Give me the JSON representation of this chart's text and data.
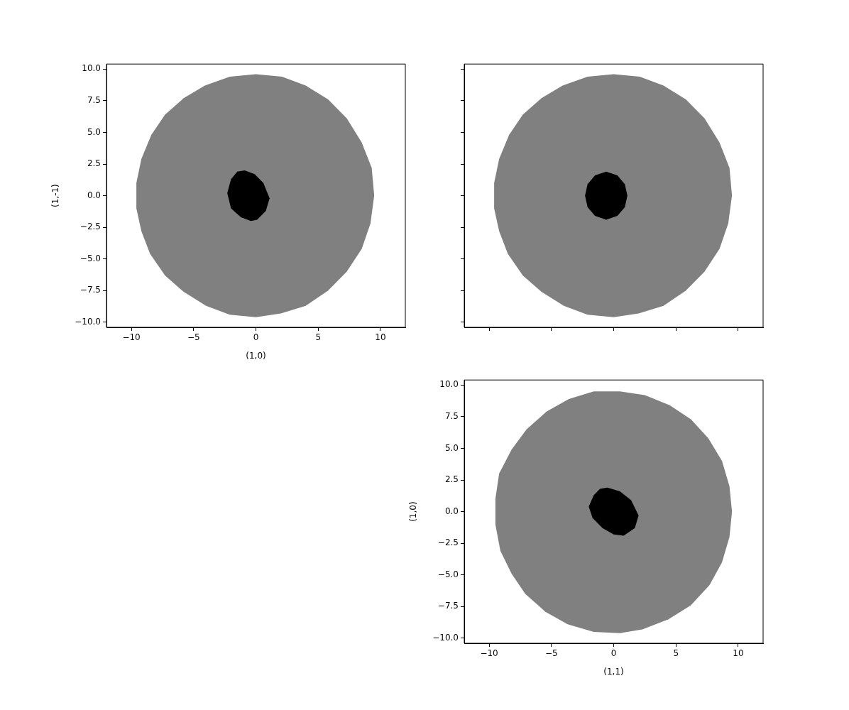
{
  "chart_data": [
    {
      "type": "area",
      "xlabel": "(1,0)",
      "ylabel": "(1,-1)",
      "xlim": [
        -12,
        12
      ],
      "ylim": [
        -10.4,
        10.4
      ],
      "xticks": [
        -10,
        -5,
        0,
        5,
        10
      ],
      "yticks": [
        {
          "value": -10,
          "label": "−10.0"
        },
        {
          "value": -7.5,
          "label": "−7.5"
        },
        {
          "value": -5,
          "label": "−5.0"
        },
        {
          "value": -2.5,
          "label": "−2.5"
        },
        {
          "value": 0,
          "label": "0.0"
        },
        2.5,
        {
          "value": 5,
          "label": "5.0"
        },
        7.5,
        {
          "value": 10,
          "label": "10.0"
        }
      ],
      "series": [
        {
          "color": "#808080",
          "x": [
            0,
            2.1,
            4,
            5.8,
            7.3,
            8.5,
            9.3,
            9.5,
            9.2,
            8.5,
            7.3,
            5.8,
            4,
            2,
            0,
            -2.1,
            -4,
            -5.8,
            -7.3,
            -8.5,
            -9.2,
            -9.6,
            -9.6,
            -9.2,
            -8.4,
            -7.3,
            -5.8,
            -4.1,
            -2.1
          ],
          "values": [
            9.6,
            9.4,
            8.7,
            7.6,
            6.1,
            4.2,
            2.2,
            0,
            -2.2,
            -4.2,
            -6,
            -7.5,
            -8.7,
            -9.3,
            -9.6,
            -9.4,
            -8.7,
            -7.6,
            -6.3,
            -4.6,
            -2.8,
            -1,
            1,
            2.9,
            4.8,
            6.4,
            7.7,
            8.7,
            9.4
          ]
        },
        {
          "color": "#000000",
          "x": [
            -0.9,
            -0.1,
            0.6,
            1.1,
            0.8,
            0.1,
            -0.4,
            -1.2,
            -2.0,
            -2.3,
            -2.0,
            -1.5
          ],
          "values": [
            2.0,
            1.7,
            1.0,
            -0.2,
            -1.2,
            -1.9,
            -2.0,
            -1.7,
            -1.0,
            0.2,
            1.3,
            1.9
          ]
        }
      ]
    },
    {
      "type": "area",
      "tick_labels": false,
      "xlim": [
        -12,
        12
      ],
      "ylim": [
        -10.4,
        10.4
      ],
      "xticks": [
        -10,
        -5,
        0,
        5,
        10
      ],
      "yticks": [
        -10,
        -7.5,
        -5,
        -2.5,
        0,
        2.5,
        5,
        7.5,
        10
      ],
      "series": [
        {
          "color": "#808080",
          "x": [
            0,
            2.1,
            4,
            5.8,
            7.3,
            8.5,
            9.3,
            9.5,
            9.2,
            8.5,
            7.3,
            5.8,
            4,
            2,
            0,
            -2.1,
            -4,
            -5.8,
            -7.3,
            -8.5,
            -9.2,
            -9.6,
            -9.6,
            -9.2,
            -8.4,
            -7.3,
            -5.8,
            -4.1,
            -2.1
          ],
          "values": [
            9.6,
            9.4,
            8.7,
            7.6,
            6.1,
            4.2,
            2.2,
            0,
            -2.2,
            -4.2,
            -6,
            -7.5,
            -8.7,
            -9.3,
            -9.6,
            -9.4,
            -8.7,
            -7.6,
            -6.3,
            -4.6,
            -2.8,
            -1,
            1,
            2.9,
            4.8,
            6.4,
            7.7,
            8.7,
            9.4
          ]
        },
        {
          "color": "#000000",
          "x": [
            -0.6,
            0.3,
            0.9,
            1.1,
            0.9,
            0.3,
            -0.6,
            -1.5,
            -2.1,
            -2.3,
            -2.1,
            -1.5
          ],
          "values": [
            1.9,
            1.6,
            0.9,
            0,
            -0.9,
            -1.6,
            -1.9,
            -1.6,
            -0.9,
            0,
            0.9,
            1.6
          ]
        }
      ]
    },
    {
      "type": "area",
      "xlabel": "(1,1)",
      "ylabel": "(1,0)",
      "xlim": [
        -12,
        12
      ],
      "ylim": [
        -10.4,
        10.4
      ],
      "xticks": [
        -10,
        -5,
        0,
        5,
        10
      ],
      "yticks": [
        {
          "value": -10,
          "label": "−10.0"
        },
        {
          "value": -7.5,
          "label": "−7.5"
        },
        {
          "value": -5,
          "label": "−5.0"
        },
        {
          "value": -2.5,
          "label": "−2.5"
        },
        {
          "value": 0,
          "label": "0.0"
        },
        2.5,
        {
          "value": 5,
          "label": "5.0"
        },
        7.5,
        {
          "value": 10,
          "label": "10.0"
        }
      ],
      "series": [
        {
          "color": "#808080",
          "x": [
            -1.6,
            0.5,
            2.5,
            4.5,
            6.2,
            7.6,
            8.7,
            9.3,
            9.5,
            9.3,
            8.7,
            7.7,
            6.2,
            4.4,
            2.3,
            0.5,
            -1.6,
            -3.7,
            -5.5,
            -7.1,
            -8.2,
            -9.1,
            -9.5,
            -9.5,
            -9.2,
            -8.2,
            -7.0,
            -5.4,
            -3.6
          ],
          "values": [
            9.5,
            9.5,
            9.2,
            8.4,
            7.3,
            5.8,
            4.0,
            2.0,
            0,
            -2.0,
            -4.0,
            -5.8,
            -7.4,
            -8.5,
            -9.3,
            -9.6,
            -9.5,
            -8.9,
            -7.9,
            -6.5,
            -4.9,
            -3.1,
            -1.0,
            1.0,
            3.0,
            4.9,
            6.5,
            7.9,
            8.9
          ]
        },
        {
          "color": "#000000",
          "x": [
            -0.5,
            0.5,
            1.4,
            2.0,
            1.7,
            0.8,
            0.0,
            -0.9,
            -1.7,
            -2.0,
            -1.6,
            -1.1
          ],
          "values": [
            1.9,
            1.6,
            0.9,
            -0.3,
            -1.3,
            -1.9,
            -1.8,
            -1.3,
            -0.5,
            0.4,
            1.3,
            1.8
          ]
        }
      ]
    }
  ]
}
